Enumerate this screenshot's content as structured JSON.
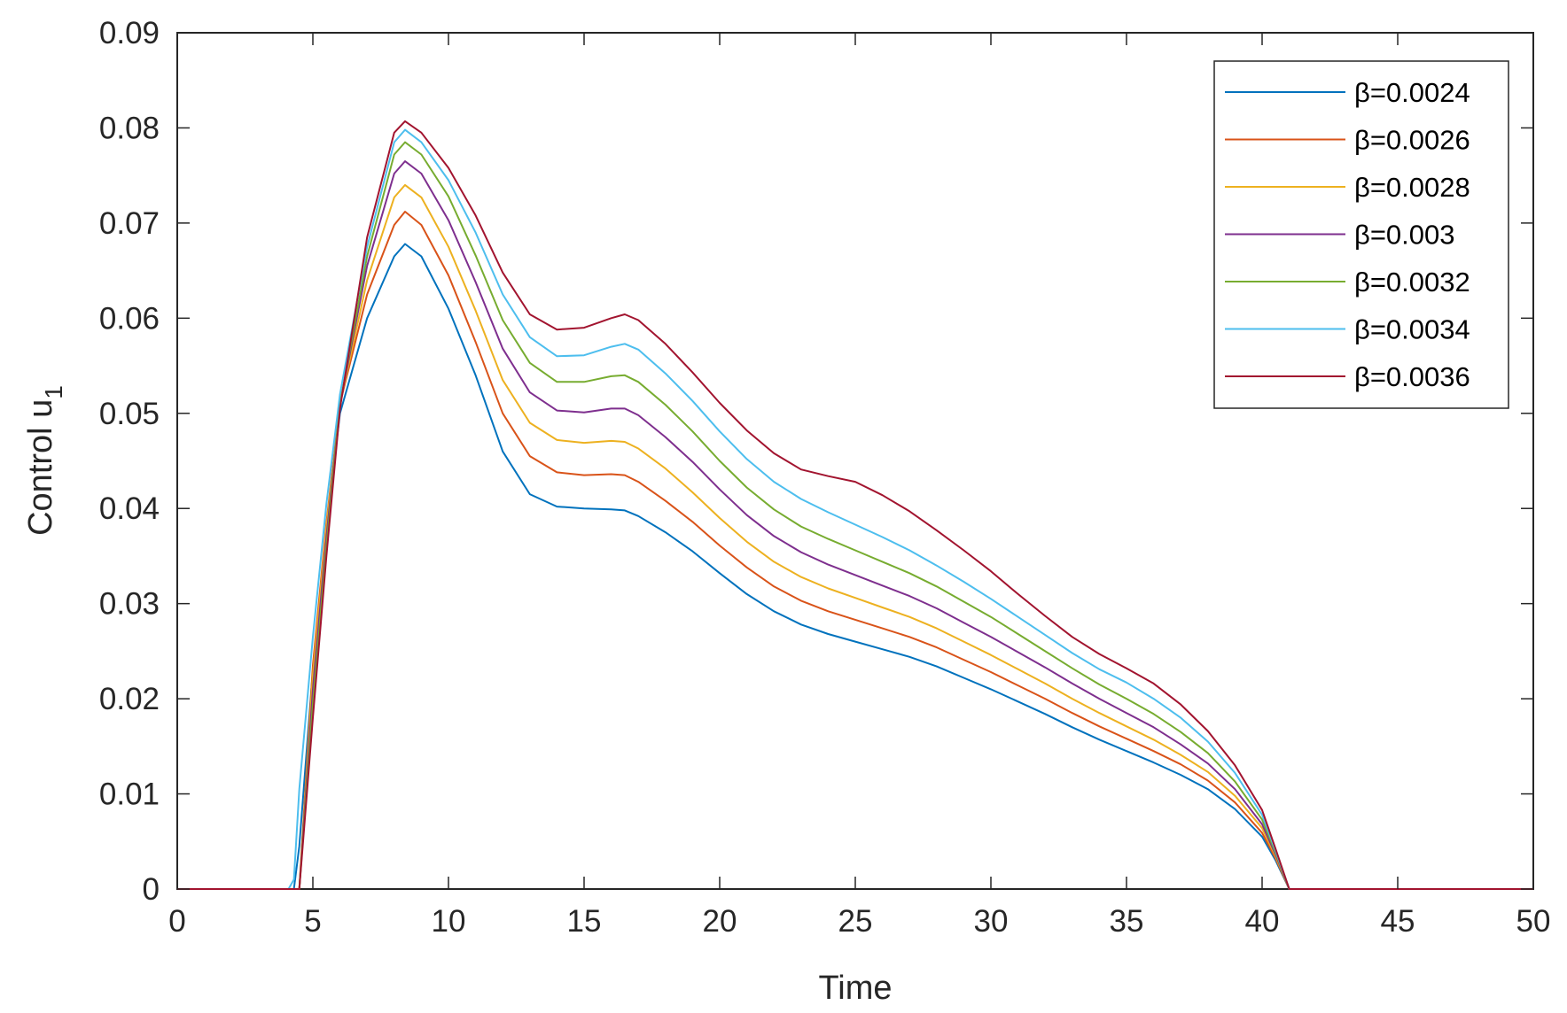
{
  "chart_data": {
    "type": "line",
    "xlabel": "Time",
    "ylabel": "Control u",
    "ylabel_subscript": "1",
    "xlim": [
      0,
      50
    ],
    "ylim": [
      0,
      0.09
    ],
    "xticks": [
      0,
      5,
      10,
      15,
      20,
      25,
      30,
      35,
      40,
      45,
      50
    ],
    "yticks": [
      0,
      0.01,
      0.02,
      0.03,
      0.04,
      0.05,
      0.06,
      0.07,
      0.08,
      0.09
    ],
    "ytick_labels": [
      "0",
      "0.01",
      "0.02",
      "0.03",
      "0.04",
      "0.05",
      "0.06",
      "0.07",
      "0.08",
      "0.09"
    ],
    "grid": false,
    "legend_position": "top-right",
    "x": [
      0,
      4,
      4.1,
      4.3,
      4.5,
      5,
      5.5,
      6,
      7,
      8,
      8.4,
      9,
      10,
      11,
      12,
      13,
      14,
      15,
      16,
      16.5,
      17,
      18,
      19,
      20,
      21,
      22,
      23,
      24,
      25,
      26,
      27,
      28,
      29,
      30,
      31,
      32,
      33,
      34,
      35,
      36,
      37,
      38,
      39,
      40,
      40.5,
      41,
      45,
      50
    ],
    "series": [
      {
        "name": "β=0.0024",
        "color": "#0072BD",
        "values": [
          0,
          0,
          0,
          0,
          0.0045,
          0.023,
          0.038,
          0.05,
          0.06,
          0.0665,
          0.0678,
          0.0665,
          0.061,
          0.054,
          0.046,
          0.0415,
          0.0402,
          0.04,
          0.0399,
          0.0398,
          0.0392,
          0.0375,
          0.0355,
          0.0332,
          0.031,
          0.0292,
          0.0278,
          0.0268,
          0.026,
          0.0252,
          0.0244,
          0.0234,
          0.0222,
          0.021,
          0.0197,
          0.0184,
          0.017,
          0.0157,
          0.0145,
          0.0133,
          0.012,
          0.0105,
          0.0084,
          0.0055,
          0.003,
          0,
          0,
          0
        ]
      },
      {
        "name": "β=0.0026",
        "color": "#D95319",
        "values": [
          0,
          0,
          0,
          0,
          0,
          0.0235,
          0.0385,
          0.051,
          0.0625,
          0.0698,
          0.0712,
          0.0698,
          0.0645,
          0.0575,
          0.05,
          0.0455,
          0.0438,
          0.0435,
          0.0436,
          0.0435,
          0.0428,
          0.0408,
          0.0386,
          0.0361,
          0.0338,
          0.0318,
          0.0303,
          0.0292,
          0.0283,
          0.0274,
          0.0265,
          0.0254,
          0.0241,
          0.0228,
          0.0214,
          0.02,
          0.0185,
          0.0171,
          0.0158,
          0.0145,
          0.0131,
          0.0114,
          0.0091,
          0.0059,
          0.0032,
          0,
          0,
          0
        ]
      },
      {
        "name": "β=0.0028",
        "color": "#EDB120",
        "values": [
          0,
          0,
          0,
          0,
          0,
          0.0225,
          0.038,
          0.051,
          0.064,
          0.0727,
          0.074,
          0.0727,
          0.0675,
          0.0608,
          0.0535,
          0.049,
          0.0472,
          0.0469,
          0.0471,
          0.047,
          0.0463,
          0.0442,
          0.0417,
          0.039,
          0.0365,
          0.0344,
          0.0328,
          0.0316,
          0.0306,
          0.0296,
          0.0286,
          0.0274,
          0.026,
          0.0246,
          0.0231,
          0.0216,
          0.02,
          0.0185,
          0.0171,
          0.0157,
          0.0141,
          0.0123,
          0.0098,
          0.0064,
          0.0034,
          0,
          0,
          0
        ]
      },
      {
        "name": "β=0.003",
        "color": "#7E2F8E",
        "values": [
          0,
          0,
          0,
          0,
          0,
          0.021,
          0.037,
          0.051,
          0.0655,
          0.0752,
          0.0765,
          0.0752,
          0.0703,
          0.0638,
          0.0568,
          0.0522,
          0.0503,
          0.0501,
          0.0505,
          0.0505,
          0.0498,
          0.0475,
          0.0449,
          0.042,
          0.0393,
          0.0371,
          0.0354,
          0.0341,
          0.033,
          0.0319,
          0.0308,
          0.0295,
          0.028,
          0.0265,
          0.0249,
          0.0233,
          0.0216,
          0.02,
          0.0185,
          0.017,
          0.0152,
          0.0132,
          0.0105,
          0.0068,
          0.0036,
          0,
          0,
          0
        ]
      },
      {
        "name": "β=0.0032",
        "color": "#77AC30",
        "values": [
          0,
          0,
          0,
          0,
          0,
          0.0195,
          0.036,
          0.051,
          0.0665,
          0.0772,
          0.0785,
          0.0772,
          0.0728,
          0.0666,
          0.0598,
          0.0553,
          0.0533,
          0.0533,
          0.0539,
          0.054,
          0.0533,
          0.0509,
          0.0481,
          0.045,
          0.0422,
          0.0399,
          0.0381,
          0.0368,
          0.0356,
          0.0344,
          0.0332,
          0.0318,
          0.0302,
          0.0286,
          0.0268,
          0.025,
          0.0232,
          0.0215,
          0.02,
          0.0184,
          0.0165,
          0.0143,
          0.0113,
          0.0073,
          0.0038,
          0,
          0,
          0
        ]
      },
      {
        "name": "β=0.0034",
        "color": "#4DBEEE",
        "values": [
          0,
          0,
          0,
          0.001,
          0.0105,
          0.0265,
          0.0405,
          0.052,
          0.0675,
          0.0785,
          0.0798,
          0.0785,
          0.0745,
          0.069,
          0.0625,
          0.058,
          0.056,
          0.0561,
          0.057,
          0.0573,
          0.0567,
          0.0542,
          0.0513,
          0.0481,
          0.0452,
          0.0428,
          0.041,
          0.0396,
          0.0383,
          0.037,
          0.0356,
          0.034,
          0.0323,
          0.0305,
          0.0286,
          0.0267,
          0.0248,
          0.0231,
          0.0217,
          0.02,
          0.018,
          0.0155,
          0.0122,
          0.0078,
          0.004,
          0,
          0,
          0
        ]
      },
      {
        "name": "β=0.0036",
        "color": "#A2142F",
        "values": [
          0,
          0,
          0,
          0,
          0,
          0.018,
          0.035,
          0.0505,
          0.0685,
          0.0795,
          0.0807,
          0.0795,
          0.0758,
          0.0708,
          0.0648,
          0.0604,
          0.0588,
          0.059,
          0.06,
          0.0604,
          0.0598,
          0.0573,
          0.0543,
          0.0511,
          0.0482,
          0.0458,
          0.0441,
          0.0434,
          0.0428,
          0.0414,
          0.0397,
          0.0377,
          0.0356,
          0.0334,
          0.031,
          0.0287,
          0.0265,
          0.0247,
          0.0232,
          0.0216,
          0.0194,
          0.0166,
          0.013,
          0.0083,
          0.0042,
          0,
          0,
          0
        ]
      }
    ]
  }
}
